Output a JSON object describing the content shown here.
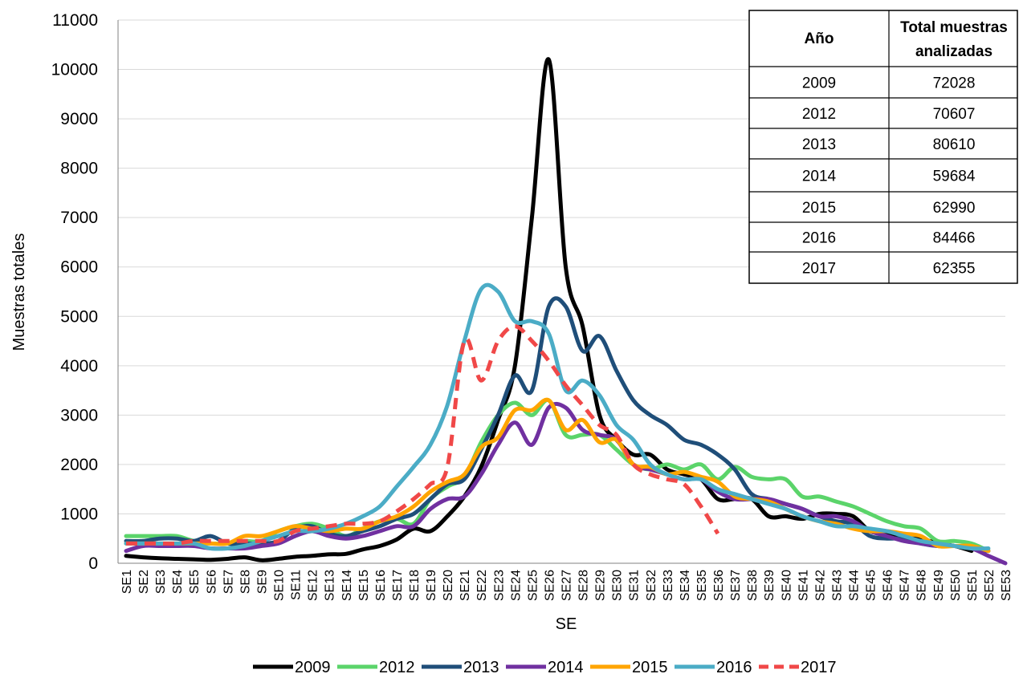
{
  "chart_data": {
    "type": "line",
    "xlabel": "SE",
    "ylabel": "Muestras totales",
    "ylim": [
      0,
      11000
    ],
    "y_ticks": [
      "0",
      "1000",
      "2000",
      "3000",
      "4000",
      "5000",
      "6000",
      "7000",
      "8000",
      "9000",
      "10000",
      "11000"
    ],
    "grid": true,
    "legend_position": "bottom",
    "categories": [
      "SE1",
      "SE2",
      "SE3",
      "SE4",
      "SE5",
      "SE6",
      "SE7",
      "SE8",
      "SE9",
      "SE10",
      "SE11",
      "SE12",
      "SE13",
      "SE14",
      "SE15",
      "SE16",
      "SE17",
      "SE18",
      "SE19",
      "SE20",
      "SE21",
      "SE22",
      "SE23",
      "SE24",
      "SE25",
      "SE26",
      "SE27",
      "SE28",
      "SE29",
      "SE30",
      "SE31",
      "SE32",
      "SE33",
      "SE34",
      "SE35",
      "SE36",
      "SE37",
      "SE38",
      "SE39",
      "SE40",
      "SE41",
      "SE42",
      "SE43",
      "SE44",
      "SE45",
      "SE46",
      "SE47",
      "SE48",
      "SE49",
      "SE50",
      "SE51",
      "SE52",
      "SE53"
    ],
    "series": [
      {
        "name": "2009",
        "color": "#000000",
        "dashed": false,
        "values": [
          150,
          120,
          100,
          90,
          80,
          70,
          90,
          120,
          60,
          90,
          130,
          150,
          180,
          190,
          280,
          350,
          480,
          700,
          650,
          950,
          1350,
          1950,
          2900,
          4000,
          7000,
          10200,
          6000,
          4800,
          3000,
          2500,
          2200,
          2200,
          1900,
          1800,
          1700,
          1300,
          1300,
          1300,
          950,
          950,
          900,
          1000,
          1000,
          950,
          650,
          600,
          500,
          500,
          400,
          350,
          250,
          null,
          null
        ]
      },
      {
        "name": "2012",
        "color": "#5BD46A",
        "dashed": false,
        "values": [
          550,
          550,
          550,
          550,
          450,
          400,
          400,
          450,
          450,
          650,
          750,
          800,
          700,
          550,
          700,
          850,
          900,
          800,
          1300,
          1550,
          1750,
          2450,
          3000,
          3250,
          3000,
          3300,
          2600,
          2600,
          2600,
          2300,
          2000,
          1900,
          2000,
          1900,
          2000,
          1700,
          1950,
          1750,
          1700,
          1700,
          1350,
          1350,
          1250,
          1150,
          1000,
          850,
          750,
          700,
          450,
          450,
          400,
          250,
          null
        ]
      },
      {
        "name": "2013",
        "color": "#1F4E79",
        "dashed": false,
        "values": [
          450,
          450,
          500,
          500,
          450,
          550,
          400,
          400,
          400,
          450,
          700,
          750,
          600,
          550,
          650,
          750,
          900,
          1000,
          1300,
          1600,
          1700,
          2300,
          3000,
          3800,
          3500,
          5200,
          5200,
          4300,
          4600,
          3900,
          3300,
          3000,
          2800,
          2500,
          2400,
          2200,
          1900,
          1400,
          1300,
          1200,
          1100,
          950,
          850,
          800,
          550,
          500,
          500,
          400,
          350,
          350,
          300,
          250,
          null
        ]
      },
      {
        "name": "2014",
        "color": "#7030A0",
        "dashed": false,
        "values": [
          250,
          350,
          350,
          350,
          350,
          300,
          300,
          300,
          350,
          400,
          550,
          650,
          550,
          500,
          550,
          650,
          750,
          750,
          1100,
          1300,
          1350,
          1800,
          2400,
          2850,
          2400,
          3150,
          3150,
          2700,
          2600,
          2500,
          2000,
          1900,
          1800,
          1700,
          1700,
          1450,
          1300,
          1300,
          1300,
          1200,
          1100,
          950,
          950,
          850,
          650,
          550,
          450,
          400,
          350,
          350,
          300,
          150,
          0
        ]
      },
      {
        "name": "2015",
        "color": "#FFA500",
        "dashed": false,
        "values": [
          400,
          400,
          400,
          400,
          400,
          400,
          400,
          550,
          550,
          650,
          750,
          700,
          650,
          700,
          700,
          850,
          950,
          1150,
          1450,
          1650,
          1800,
          2350,
          2550,
          3100,
          3100,
          3300,
          2700,
          2900,
          2450,
          2500,
          2000,
          1950,
          1800,
          1850,
          1750,
          1650,
          1350,
          1300,
          1250,
          1100,
          950,
          850,
          800,
          700,
          650,
          650,
          600,
          550,
          350,
          350,
          350,
          250,
          null
        ]
      },
      {
        "name": "2016",
        "color": "#4BACC6",
        "dashed": false,
        "values": [
          400,
          400,
          400,
          400,
          400,
          300,
          300,
          350,
          450,
          550,
          650,
          650,
          700,
          800,
          950,
          1150,
          1550,
          1950,
          2400,
          3200,
          4500,
          5550,
          5500,
          4900,
          4900,
          4650,
          3500,
          3700,
          3400,
          2800,
          2500,
          2000,
          1800,
          1700,
          1700,
          1500,
          1400,
          1300,
          1200,
          1100,
          950,
          850,
          750,
          750,
          700,
          650,
          550,
          450,
          400,
          350,
          300,
          300,
          null
        ]
      },
      {
        "name": "2017",
        "color": "#F04848",
        "dashed": true,
        "values": [
          400,
          400,
          400,
          400,
          450,
          450,
          450,
          450,
          450,
          450,
          650,
          700,
          750,
          800,
          800,
          850,
          1050,
          1300,
          1600,
          1950,
          4500,
          3700,
          4500,
          4800,
          4500,
          4100,
          3600,
          3200,
          2800,
          2600,
          2000,
          1800,
          1700,
          1600,
          1150,
          600,
          null,
          null,
          null,
          null,
          null,
          null,
          null,
          null,
          null,
          null,
          null,
          null,
          null,
          null,
          null,
          null,
          null
        ]
      }
    ]
  },
  "table": {
    "headers": [
      "Año",
      "Total muestras",
      "analizadas"
    ],
    "rows": [
      {
        "year": "2009",
        "total": "72028"
      },
      {
        "year": "2012",
        "total": "70607"
      },
      {
        "year": "2013",
        "total": "80610"
      },
      {
        "year": "2014",
        "total": "59684"
      },
      {
        "year": "2015",
        "total": "62990"
      },
      {
        "year": "2016",
        "total": "84466"
      },
      {
        "year": "2017",
        "total": "62355"
      }
    ]
  }
}
